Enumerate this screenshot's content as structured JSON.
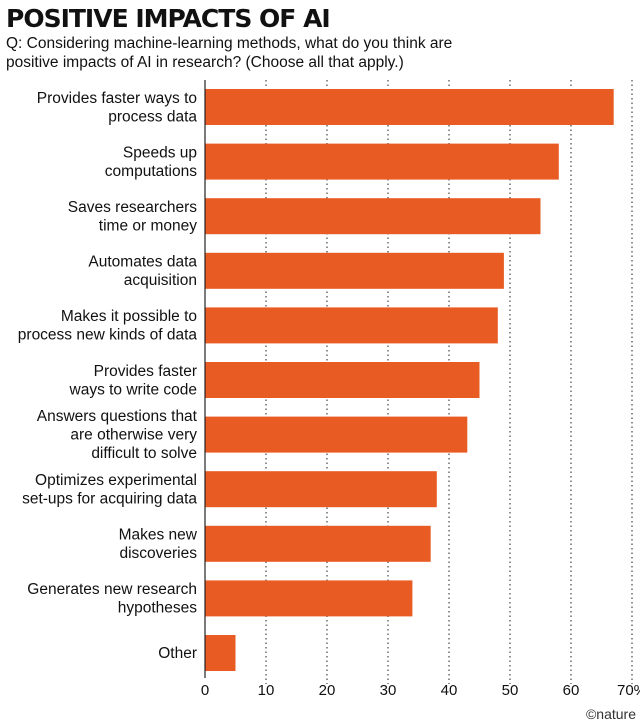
{
  "title": "POSITIVE IMPACTS OF AI",
  "question": "Q: Considering machine-learning methods, what do you think are positive impacts of AI in research? (Choose all that apply.)",
  "credit": "©nature",
  "colors": {
    "bar": "#e85c23",
    "grid": "#222222"
  },
  "chart_data": {
    "type": "bar",
    "orientation": "horizontal",
    "categories": [
      [
        "Provides faster ways to",
        "process data"
      ],
      [
        "Speeds up",
        "computations"
      ],
      [
        "Saves researchers",
        "time or money"
      ],
      [
        "Automates data",
        "acquisition"
      ],
      [
        "Makes it possible to",
        "process new kinds of data"
      ],
      [
        "Provides faster",
        "ways to write code"
      ],
      [
        "Answers questions that",
        "are otherwise very",
        "difficult to solve"
      ],
      [
        "Optimizes experimental",
        "set-ups for acquiring data"
      ],
      [
        "Makes new",
        "discoveries"
      ],
      [
        "Generates new research",
        "hypotheses"
      ],
      [
        "Other"
      ]
    ],
    "values": [
      67,
      58,
      55,
      49,
      48,
      45,
      43,
      38,
      37,
      34,
      5
    ],
    "xlim": [
      0,
      70
    ],
    "xticks": [
      0,
      10,
      20,
      30,
      40,
      50,
      60,
      70
    ],
    "xtick_labels": [
      "0",
      "10",
      "20",
      "30",
      "40",
      "50",
      "60",
      "70%"
    ],
    "grid": "vertical dotted",
    "legend": "none"
  }
}
